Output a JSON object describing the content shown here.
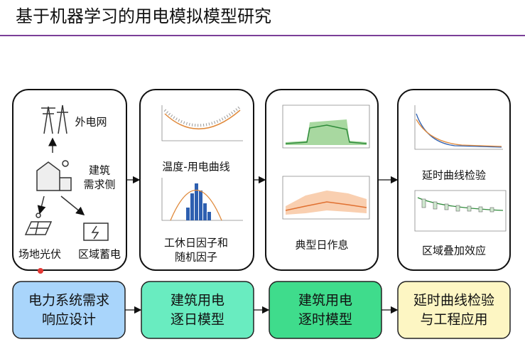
{
  "title": "基于机器学习的用电模拟模型研究",
  "panels": [
    {
      "labels": [
        "外电网",
        "建筑",
        "需求侧",
        "场地光伏",
        "区域蓄电"
      ]
    },
    {
      "labels": [
        "温度-用电曲线",
        "工休日因子和",
        "随机因子"
      ]
    },
    {
      "labels": [
        "典型日作息"
      ]
    },
    {
      "labels": [
        "延时曲线检验",
        "区域叠加效应"
      ]
    }
  ],
  "steps": [
    {
      "lines": [
        "电力系统需求",
        "响应设计"
      ]
    },
    {
      "lines": [
        "建筑用电",
        "逐日模型"
      ]
    },
    {
      "lines": [
        "建筑用电",
        "逐时模型"
      ]
    },
    {
      "lines": [
        "延时曲线检验",
        "与工程应用"
      ]
    }
  ]
}
